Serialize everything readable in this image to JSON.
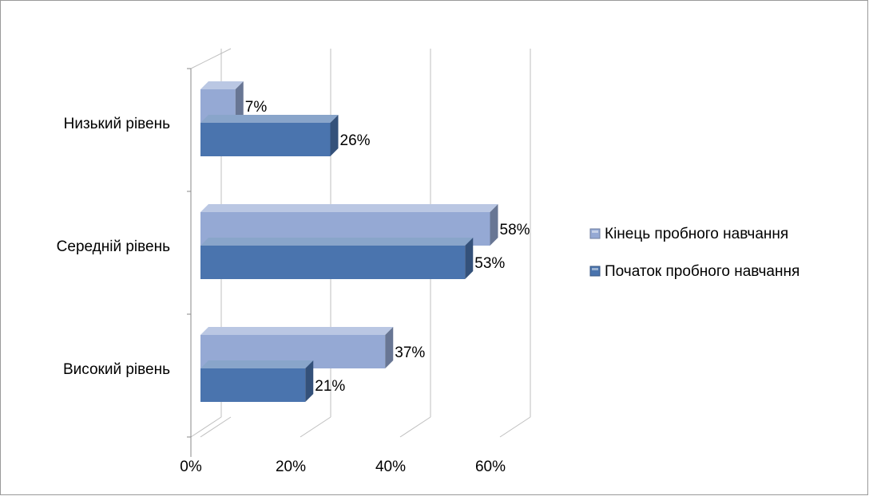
{
  "chart_data": {
    "type": "bar",
    "orientation": "horizontal",
    "style": "3d",
    "categories": [
      "Низький рівень",
      "Середній рівень",
      "Високий рівень"
    ],
    "series": [
      {
        "name": "Кінець пробного навчання",
        "values": [
          7,
          58,
          37
        ],
        "data_labels": [
          "7%",
          "58%",
          "37%"
        ],
        "color": "#95A9D4"
      },
      {
        "name": "Початок пробного навчання",
        "values": [
          26,
          53,
          21
        ],
        "data_labels": [
          "26%",
          "53%",
          "21%"
        ],
        "color": "#4A74AE"
      }
    ],
    "x_ticks": [
      "0%",
      "20%",
      "40%",
      "60%"
    ],
    "x_tick_values": [
      0,
      20,
      40,
      60
    ],
    "xlim": [
      0,
      60
    ],
    "grid": true,
    "legend_position": "right"
  }
}
